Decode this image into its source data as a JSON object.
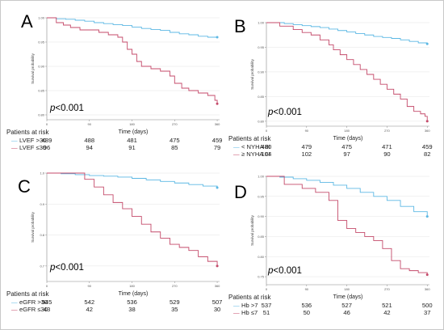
{
  "chart_data": [
    {
      "type": "line",
      "panel_label": "A",
      "ylabel": "Survival probability",
      "xlabel": "Time (days)",
      "x_ticks": [
        0,
        90,
        180,
        270,
        360
      ],
      "y_ticks": [
        "1.00",
        "0.95",
        "0.90",
        "0.85",
        "0.80"
      ],
      "ylim": [
        0.79,
        1.0
      ],
      "xlim": [
        0,
        365
      ],
      "p_value": {
        "italic": "p",
        "rest": "<0.001"
      },
      "risk_title": "Patients at risk",
      "series": [
        {
          "name": "LVEF >30",
          "symbol": "—",
          "color": "#5cb8e4",
          "at_risk": [
            489,
            488,
            481,
            475,
            459
          ],
          "x": [
            0,
            10,
            20,
            40,
            60,
            80,
            100,
            120,
            140,
            160,
            180,
            200,
            220,
            240,
            260,
            280,
            300,
            320,
            340,
            360
          ],
          "y": [
            1.0,
            1.0,
            0.998,
            0.997,
            0.995,
            0.993,
            0.99,
            0.988,
            0.986,
            0.984,
            0.981,
            0.978,
            0.976,
            0.974,
            0.97,
            0.967,
            0.965,
            0.962,
            0.96,
            0.96
          ]
        },
        {
          "name": "LVEF ≤30",
          "symbol": "—",
          "color": "#c44a6a",
          "at_risk": [
            96,
            94,
            91,
            85,
            79
          ],
          "x": [
            0,
            20,
            35,
            50,
            70,
            90,
            110,
            130,
            150,
            160,
            170,
            180,
            190,
            200,
            220,
            240,
            260,
            270,
            285,
            300,
            320,
            340,
            355,
            360
          ],
          "y": [
            1.0,
            0.99,
            0.985,
            0.98,
            0.975,
            0.975,
            0.97,
            0.965,
            0.96,
            0.95,
            0.935,
            0.925,
            0.91,
            0.9,
            0.895,
            0.89,
            0.88,
            0.865,
            0.855,
            0.85,
            0.845,
            0.84,
            0.83,
            0.823
          ]
        }
      ]
    },
    {
      "type": "line",
      "panel_label": "B",
      "ylabel": "Survival probability",
      "xlabel": "Time (days)",
      "x_ticks": [
        0,
        90,
        180,
        270,
        360
      ],
      "y_ticks": [
        "1.00",
        "0.95",
        "0.90",
        "0.85",
        "0.80"
      ],
      "ylim": [
        0.79,
        1.0
      ],
      "xlim": [
        0,
        365
      ],
      "p_value": {
        "italic": "p",
        "rest": "<0.001"
      },
      "risk_title": "Patients at risk",
      "series": [
        {
          "name": "< NYHA III",
          "symbol": "—",
          "color": "#5cb8e4",
          "at_risk": [
            480,
            479,
            475,
            471,
            459
          ],
          "x": [
            0,
            20,
            40,
            60,
            80,
            100,
            120,
            140,
            160,
            180,
            200,
            220,
            240,
            260,
            280,
            300,
            320,
            340,
            360
          ],
          "y": [
            1.0,
            1.0,
            0.998,
            0.996,
            0.994,
            0.992,
            0.99,
            0.987,
            0.984,
            0.981,
            0.978,
            0.975,
            0.972,
            0.97,
            0.968,
            0.965,
            0.962,
            0.959,
            0.957
          ]
        },
        {
          "name": "≥ NYHA III",
          "symbol": "—",
          "color": "#c44a6a",
          "at_risk": [
            104,
            102,
            97,
            90,
            82
          ],
          "x": [
            0,
            30,
            60,
            80,
            100,
            120,
            140,
            150,
            165,
            180,
            195,
            210,
            225,
            240,
            255,
            270,
            285,
            300,
            315,
            330,
            345,
            355,
            360
          ],
          "y": [
            1.0,
            0.993,
            0.986,
            0.98,
            0.975,
            0.965,
            0.955,
            0.945,
            0.935,
            0.925,
            0.915,
            0.905,
            0.895,
            0.885,
            0.875,
            0.865,
            0.855,
            0.845,
            0.83,
            0.82,
            0.815,
            0.81,
            0.8
          ]
        }
      ]
    },
    {
      "type": "line",
      "panel_label": "C",
      "ylabel": "Survival probability",
      "xlabel": "Time (days)",
      "x_ticks": [
        0,
        90,
        180,
        270,
        360
      ],
      "y_ticks": [
        "1.0",
        "0.9",
        "0.8",
        "0.7"
      ],
      "ylim": [
        0.65,
        1.0
      ],
      "xlim": [
        0,
        365
      ],
      "p_value": {
        "italic": "p",
        "rest": "<0.001"
      },
      "risk_title": "Patients at risk",
      "series": [
        {
          "name": "eGFR >30",
          "symbol": "—",
          "color": "#5cb8e4",
          "at_risk": [
            545,
            542,
            536,
            529,
            507
          ],
          "x": [
            0,
            30,
            60,
            90,
            120,
            150,
            180,
            210,
            240,
            270,
            300,
            330,
            360
          ],
          "y": [
            1.0,
            0.998,
            0.995,
            0.992,
            0.99,
            0.987,
            0.983,
            0.978,
            0.973,
            0.968,
            0.963,
            0.958,
            0.953
          ]
        },
        {
          "name": "eGFR ≤30",
          "symbol": "—",
          "color": "#c44a6a",
          "at_risk": [
            43,
            42,
            38,
            35,
            30
          ],
          "x": [
            0,
            60,
            80,
            100,
            120,
            140,
            160,
            180,
            200,
            220,
            240,
            260,
            280,
            300,
            320,
            340,
            360
          ],
          "y": [
            1.0,
            1.0,
            0.98,
            0.955,
            0.93,
            0.905,
            0.885,
            0.86,
            0.835,
            0.81,
            0.79,
            0.77,
            0.76,
            0.75,
            0.73,
            0.715,
            0.7
          ]
        }
      ]
    },
    {
      "type": "line",
      "panel_label": "D",
      "ylabel": "Survival probability",
      "xlabel": "Time (days)",
      "x_ticks": [
        0,
        90,
        180,
        270,
        360
      ],
      "y_ticks": [
        "1.00",
        "0.95",
        "0.90",
        "0.85",
        "0.80",
        "0.75"
      ],
      "ylim": [
        0.73,
        1.0
      ],
      "xlim": [
        0,
        365
      ],
      "p_value": {
        "italic": "p",
        "rest": "<0.001"
      },
      "risk_title": "Patients at risk",
      "series": [
        {
          "name": "Hb >7",
          "symbol": "—",
          "color": "#5cb8e4",
          "at_risk": [
            537,
            536,
            527,
            521,
            500
          ],
          "x": [
            0,
            30,
            60,
            90,
            120,
            150,
            180,
            210,
            240,
            270,
            300,
            330,
            360
          ],
          "y": [
            1.0,
            0.998,
            0.994,
            0.99,
            0.985,
            0.978,
            0.97,
            0.96,
            0.95,
            0.94,
            0.925,
            0.912,
            0.9
          ]
        },
        {
          "name": "Hb ≤7",
          "symbol": "—",
          "color": "#c44a6a",
          "at_risk": [
            51,
            50,
            46,
            42,
            37
          ],
          "x": [
            0,
            40,
            80,
            110,
            140,
            160,
            180,
            200,
            220,
            240,
            260,
            280,
            300,
            320,
            340,
            360
          ],
          "y": [
            1.0,
            0.98,
            0.97,
            0.96,
            0.94,
            0.89,
            0.87,
            0.86,
            0.85,
            0.84,
            0.82,
            0.79,
            0.77,
            0.765,
            0.76,
            0.755
          ]
        }
      ]
    }
  ]
}
